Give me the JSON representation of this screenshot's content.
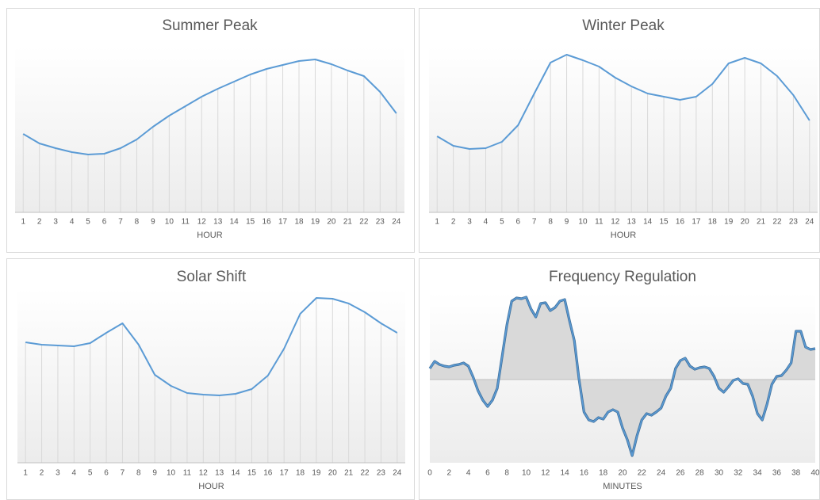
{
  "chart_data": [
    {
      "type": "line",
      "title": "Summer Peak",
      "x_label": "HOUR",
      "color": "#5b9bd5",
      "grid": "drop-lines",
      "categories": [
        "1",
        "2",
        "3",
        "4",
        "5",
        "6",
        "7",
        "8",
        "9",
        "10",
        "11",
        "12",
        "13",
        "14",
        "15",
        "16",
        "17",
        "18",
        "19",
        "20",
        "21",
        "22",
        "23",
        "24"
      ],
      "values": [
        99,
        87,
        81,
        76,
        73,
        74,
        81,
        92,
        108,
        122,
        134,
        146,
        156,
        165,
        174,
        181,
        186,
        191,
        193,
        187,
        179,
        172,
        152,
        125
      ],
      "ylim": [
        0,
        210
      ]
    },
    {
      "type": "line",
      "title": "Winter Peak",
      "x_label": "HOUR",
      "color": "#5b9bd5",
      "grid": "drop-lines",
      "categories": [
        "1",
        "2",
        "3",
        "4",
        "5",
        "6",
        "7",
        "8",
        "9",
        "10",
        "11",
        "12",
        "13",
        "14",
        "15",
        "16",
        "17",
        "18",
        "19",
        "20",
        "21",
        "22",
        "23",
        "24"
      ],
      "values": [
        96,
        84,
        80,
        81,
        89,
        110,
        150,
        189,
        199,
        192,
        184,
        170,
        159,
        150,
        146,
        142,
        146,
        162,
        188,
        195,
        188,
        172,
        148,
        116
      ],
      "ylim": [
        0,
        210
      ]
    },
    {
      "type": "line",
      "title": "Solar Shift",
      "x_label": "HOUR",
      "color": "#5b9bd5",
      "grid": "drop-lines",
      "categories": [
        "1",
        "2",
        "3",
        "4",
        "5",
        "6",
        "7",
        "8",
        "9",
        "10",
        "11",
        "12",
        "13",
        "14",
        "15",
        "16",
        "17",
        "18",
        "19",
        "20",
        "21",
        "22",
        "23",
        "24"
      ],
      "values": [
        152,
        149,
        148,
        147,
        151,
        164,
        176,
        149,
        111,
        97,
        88,
        86,
        85,
        87,
        93,
        110,
        144,
        188,
        208,
        207,
        201,
        190,
        176,
        164
      ],
      "ylim": [
        0,
        220
      ]
    },
    {
      "type": "area",
      "title": "Frequency Regulation",
      "x_label": "MINUTES",
      "color": "#5b9bd5",
      "fill_color": "#d9d9d9",
      "x": [
        0,
        0.5,
        1,
        1.5,
        2,
        2.5,
        3,
        3.5,
        4,
        4.5,
        5,
        5.5,
        6,
        6.5,
        7,
        7.5,
        8,
        8.5,
        9,
        9.5,
        10,
        10.5,
        11,
        11.5,
        12,
        12.5,
        13,
        13.5,
        14,
        14.5,
        15,
        15.5,
        16,
        16.5,
        17,
        17.5,
        18,
        18.5,
        19,
        19.5,
        20,
        20.5,
        21,
        21.5,
        22,
        22.5,
        23,
        23.5,
        24,
        24.5,
        25,
        25.5,
        26,
        26.5,
        27,
        27.5,
        28,
        28.5,
        29,
        29.5,
        30,
        30.5,
        31,
        31.5,
        32,
        32.5,
        33,
        33.5,
        34,
        34.5,
        35,
        35.5,
        36,
        36.5,
        37,
        37.5,
        38,
        38.5,
        39,
        39.5,
        40
      ],
      "values": [
        14,
        23,
        19,
        17,
        16,
        18,
        19,
        21,
        17,
        3,
        -14,
        -26,
        -34,
        -26,
        -11,
        29,
        69,
        99,
        103,
        102,
        104,
        89,
        79,
        96,
        97,
        87,
        91,
        99,
        101,
        74,
        49,
        -1,
        -41,
        -51,
        -53,
        -48,
        -50,
        -41,
        -38,
        -41,
        -61,
        -76,
        -96,
        -71,
        -51,
        -43,
        -45,
        -41,
        -36,
        -21,
        -11,
        14,
        24,
        27,
        17,
        13,
        15,
        16,
        14,
        4,
        -11,
        -16,
        -9,
        -1,
        1,
        -5,
        -6,
        -21,
        -43,
        -51,
        -31,
        -6,
        4,
        5,
        12,
        21,
        61,
        61,
        41,
        38,
        39
      ],
      "xlim": [
        0,
        40
      ],
      "xticks": [
        0,
        2,
        4,
        6,
        8,
        10,
        12,
        14,
        16,
        18,
        20,
        22,
        24,
        26,
        28,
        30,
        32,
        34,
        36,
        38,
        40
      ],
      "ylim": [
        -105,
        110
      ]
    }
  ]
}
